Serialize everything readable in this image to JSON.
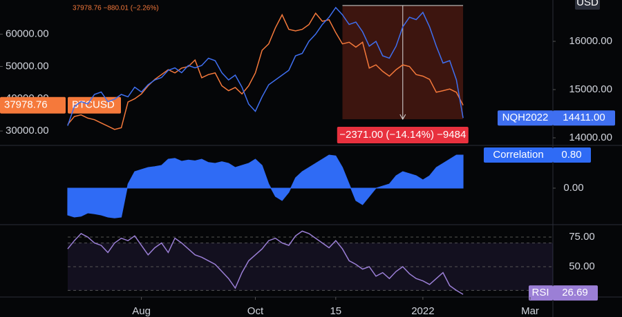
{
  "chart_data": [
    {
      "type": "line",
      "annotation": "37978.76 −880.01 (−2.26%)",
      "y2_unit": "USD",
      "ylim": [
        25750,
        70600
      ],
      "yticks": [
        {
          "value": 30000,
          "label": "30000.00"
        },
        {
          "value": 40000,
          "label": "40000.00"
        },
        {
          "value": 50000,
          "label": "50000.00"
        },
        {
          "value": 60000,
          "label": "60000.00"
        }
      ],
      "y2lim": [
        13857,
        16857
      ],
      "y2ticks": [
        {
          "value": 14000,
          "label": "14000.00"
        },
        {
          "value": 15000,
          "label": "15000.00"
        },
        {
          "value": 16000,
          "label": "16000.00"
        }
      ],
      "measure": {
        "from": 41,
        "to": 59,
        "label": "−2371.00 (−14.14%) −9484"
      },
      "series": [
        {
          "name": "BTCUSD",
          "color": "#f5793b",
          "last_label": "37978.76",
          "values": [
            32000,
            34500,
            35000,
            34000,
            33500,
            32500,
            31500,
            30500,
            31000,
            39000,
            40000,
            41500,
            44000,
            46000,
            47500,
            49000,
            48000,
            49500,
            50000,
            52000,
            46500,
            47500,
            48000,
            44000,
            42500,
            43500,
            41500,
            44000,
            48000,
            55000,
            57000,
            62000,
            66000,
            61500,
            61000,
            61500,
            63000,
            66500,
            64000,
            64500,
            60500,
            57000,
            57500,
            56000,
            57500,
            49500,
            50500,
            48500,
            47000,
            49000,
            50500,
            50000,
            47500,
            47000,
            46000,
            42000,
            42500,
            43000,
            42000,
            37978.76
          ]
        },
        {
          "name": "NQH2022",
          "color": "#3f6ff0",
          "axis": "y2",
          "last_label": "14411.00",
          "values": [
            14250,
            14650,
            14750,
            14700,
            14900,
            14950,
            14750,
            14800,
            14900,
            14850,
            15050,
            14950,
            15100,
            15200,
            15250,
            15400,
            15450,
            15350,
            15500,
            15450,
            15500,
            15650,
            15600,
            15350,
            15200,
            15300,
            15050,
            14700,
            14550,
            14850,
            15100,
            15200,
            15300,
            15400,
            15700,
            15750,
            16000,
            16150,
            16350,
            16500,
            16700,
            16550,
            16350,
            16400,
            16200,
            15900,
            16000,
            15700,
            15650,
            15900,
            16300,
            16500,
            16450,
            16600,
            16300,
            15900,
            15550,
            15600,
            15200,
            14411
          ]
        }
      ]
    },
    {
      "type": "area",
      "ylim": [
        -0.867,
        1.017
      ],
      "yticks": [
        {
          "value": 0,
          "label": "0.00"
        }
      ],
      "series": [
        {
          "name": "Correlation",
          "color": "#2f6bf5",
          "last_label": "0.80",
          "values": [
            -0.65,
            -0.7,
            -0.68,
            -0.6,
            -0.62,
            -0.65,
            -0.7,
            -0.72,
            -0.7,
            0.1,
            0.4,
            0.45,
            0.5,
            0.52,
            0.55,
            0.7,
            0.72,
            0.65,
            0.68,
            0.66,
            0.7,
            0.62,
            0.6,
            0.64,
            0.6,
            0.5,
            0.55,
            0.6,
            0.7,
            0.55,
            0.1,
            -0.2,
            -0.3,
            -0.1,
            0.25,
            0.4,
            0.5,
            0.6,
            0.7,
            0.8,
            0.78,
            0.5,
            0.1,
            -0.3,
            -0.4,
            -0.2,
            0.0,
            0.05,
            0.1,
            0.3,
            0.4,
            0.35,
            0.3,
            0.2,
            0.3,
            0.5,
            0.6,
            0.7,
            0.8,
            0.8
          ]
        }
      ]
    },
    {
      "type": "line",
      "ylim": [
        25,
        84.9
      ],
      "yticks": [
        {
          "value": 50,
          "label": "50.00"
        },
        {
          "value": 75,
          "label": "75.00"
        }
      ],
      "band": [
        30,
        70
      ],
      "xlim": [
        -10.1,
        72.4
      ],
      "xticks": [
        {
          "value": 11,
          "label": "Aug"
        },
        {
          "value": 28,
          "label": "Oct"
        },
        {
          "value": 40,
          "label": "15"
        },
        {
          "value": 53,
          "label": "2022"
        },
        {
          "value": 69,
          "label": "Mar"
        }
      ],
      "series": [
        {
          "name": "RSI",
          "color": "#9b7fd6",
          "last_label": "26.69",
          "values": [
            65,
            72,
            78,
            75,
            70,
            68,
            62,
            70,
            74,
            72,
            76,
            68,
            60,
            66,
            70,
            62,
            74,
            70,
            65,
            60,
            58,
            55,
            52,
            46,
            40,
            32,
            45,
            55,
            60,
            65,
            72,
            74,
            70,
            68,
            76,
            80,
            78,
            74,
            70,
            66,
            72,
            65,
            55,
            52,
            48,
            50,
            42,
            45,
            40,
            46,
            50,
            44,
            40,
            38,
            35,
            40,
            45,
            34,
            30,
            26.69
          ]
        }
      ]
    }
  ]
}
